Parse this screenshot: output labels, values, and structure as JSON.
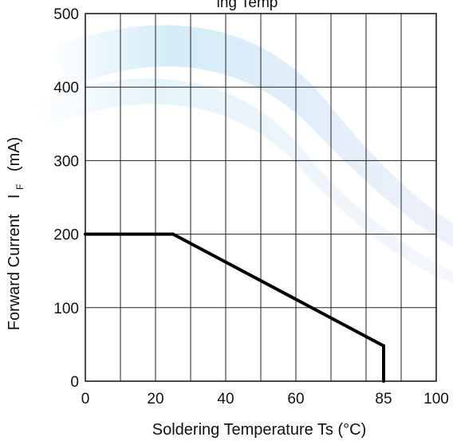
{
  "chart_data": {
    "type": "line",
    "title": "ing Temp",
    "xlabel": "Soldering Temperature Ts (°C)",
    "ylabel": {
      "prefix": "Forward Current",
      "symbol": "I",
      "subscript": "F",
      "unit": "(mA)"
    },
    "xlim": [
      0,
      100
    ],
    "ylim": [
      0,
      500
    ],
    "x_ticks": [
      0,
      20,
      40,
      60,
      85,
      100
    ],
    "x_gridlines": [
      10,
      20,
      30,
      40,
      50,
      60,
      70,
      80,
      90
    ],
    "y_ticks": [
      0,
      100,
      200,
      300,
      400,
      500
    ],
    "grid": true,
    "series": [
      {
        "color": "#000000",
        "points": [
          {
            "x": 0,
            "y": 200
          },
          {
            "x": 25,
            "y": 200
          },
          {
            "x": 85,
            "y": 48
          },
          {
            "x": 85,
            "y": 0
          }
        ]
      }
    ]
  }
}
